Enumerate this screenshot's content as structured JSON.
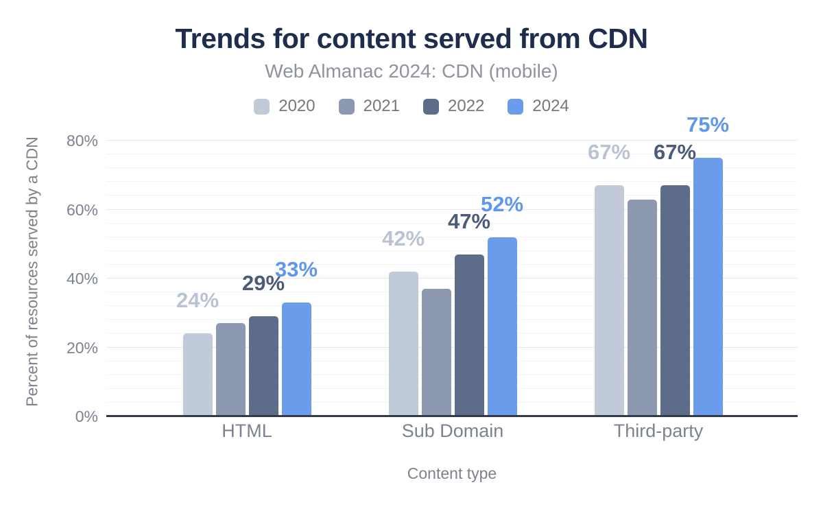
{
  "title": "Trends for content served from CDN",
  "subtitle": "Web Almanac 2024: CDN (mobile)",
  "theme": {
    "background": "#ffffff",
    "title_color": "#1f2d4d",
    "subtitle_color": "#8f939b",
    "legend_text_color": "#75777d",
    "tick_text_color": "#7c8290",
    "axis_title_color": "#7d828d",
    "axis_line_color": "#333a45",
    "gridline_major_color": "#e5e6e8",
    "gridline_minor_color": "#f3f4f5"
  },
  "chart_data": {
    "type": "bar",
    "title": "Trends for content served from CDN",
    "subtitle": "Web Almanac 2024: CDN (mobile)",
    "xlabel": "Content type",
    "ylabel": "Percent of resources served by a CDN",
    "categories": [
      "HTML",
      "Sub Domain",
      "Third-party"
    ],
    "series": [
      {
        "name": "2020",
        "color": "#c1cad8",
        "label_color": "#b9c3d4",
        "values": [
          24,
          42,
          67
        ],
        "labels": [
          "24%",
          "42%",
          "67%"
        ]
      },
      {
        "name": "2021",
        "color": "#8d99b0",
        "label_color": null,
        "values": [
          27,
          37,
          63
        ],
        "labels": [
          null,
          null,
          null
        ]
      },
      {
        "name": "2022",
        "color": "#5d6c88",
        "label_color": "#4b5b78",
        "values": [
          29,
          47,
          67
        ],
        "labels": [
          "29%",
          "47%",
          "67%"
        ]
      },
      {
        "name": "2024",
        "color": "#6a9ceb",
        "label_color": "#5f97ed",
        "values": [
          33,
          52,
          75
        ],
        "labels": [
          "33%",
          "52%",
          "75%"
        ]
      }
    ],
    "y_axis": {
      "ticks": [
        "0%",
        "20%",
        "40%",
        "60%",
        "80%"
      ],
      "tick_values": [
        0,
        20,
        40,
        60,
        80
      ],
      "ylim": [
        0,
        84
      ],
      "major_step": 20,
      "minor_step": 4
    },
    "legend_position": "top",
    "grid": true,
    "annotations": "values shown above 2020, 2022 and 2024 bars; 2021 bars unlabeled (values estimated from bar heights)"
  }
}
